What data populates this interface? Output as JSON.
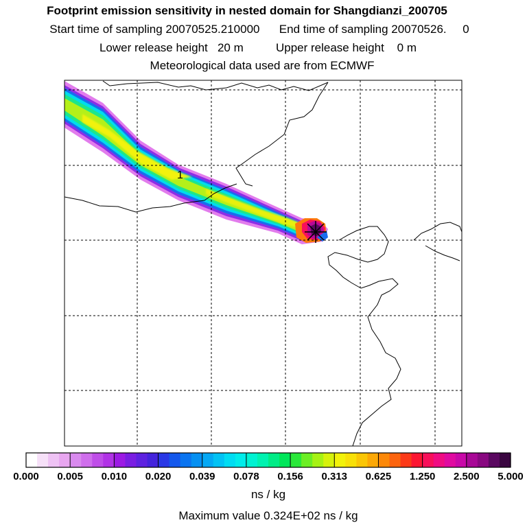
{
  "header": {
    "title": "Footprint emission sensitivity in nested domain for Shangdianzi_200705",
    "sampling_line": "Start time of sampling 20070525.210000      End time of sampling 20070526.     0",
    "release_line": "Lower release height   20 m          Upper release height    0 m",
    "met_line": "Meteorological data used are from ECMWF"
  },
  "chart_data": {
    "type": "heatmap",
    "title": "Footprint emission sensitivity in nested domain for Shangdianzi_200705",
    "contour_label": "1",
    "colorbar": {
      "tick_labels": [
        "0.000",
        "0.005",
        "0.010",
        "0.020",
        "0.039",
        "0.078",
        "0.156",
        "0.313",
        "0.625",
        "1.250",
        "2.500",
        "5.000"
      ],
      "colors": [
        "#ffffff",
        "#f6e0f8",
        "#eec2f4",
        "#e8a6f0",
        "#d98aee",
        "#cf6eec",
        "#bf4ee8",
        "#b133e6",
        "#9c1ae4",
        "#7a1ee2",
        "#5e22e0",
        "#4424dc",
        "#2a38e6",
        "#1458ec",
        "#0a74f0",
        "#0590f2",
        "#04a8f4",
        "#02c2f4",
        "#00dcf2",
        "#00ecea",
        "#00f2d2",
        "#00f2b0",
        "#00ec86",
        "#00e65a",
        "#2ae83a",
        "#6cee24",
        "#a6f214",
        "#d6f20c",
        "#f2f20a",
        "#f8e008",
        "#fac606",
        "#fca806",
        "#fc8808",
        "#fc640e",
        "#fc3a18",
        "#fc1632",
        "#f8105a",
        "#f00c82",
        "#e00aa0",
        "#c808a8",
        "#a80896",
        "#880880",
        "#5a0860",
        "#3a0640"
      ],
      "unit": "ns / kg"
    },
    "max_value_text": "Maximum value  0.324E+02 ns / kg",
    "max_value": 32.4,
    "grid": true
  },
  "colors": {
    "frame": "#000000",
    "coast": "#000000",
    "grid": "#000000"
  }
}
